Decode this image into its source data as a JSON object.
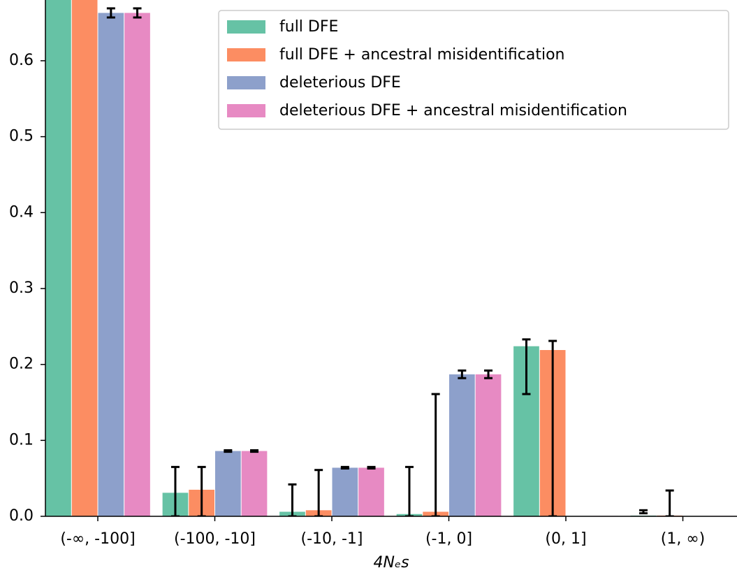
{
  "chart_data": {
    "type": "bar",
    "xlabel": "4Nₑs",
    "categories": [
      "(-∞, -100]",
      "(-100, -10]",
      "(-10, -1]",
      "(-1, 0]",
      "(0, 1]",
      "(1, ∞)"
    ],
    "series": [
      {
        "name": "full DFE",
        "color": "#66c2a5",
        "values": [
          0.7,
          0.031,
          0.006,
          0.003,
          0.224,
          0.001
        ],
        "ci_low": [
          null,
          0,
          0,
          0,
          0.161,
          0.004
        ],
        "ci_high": [
          null,
          0.065,
          0.042,
          0.065,
          0.233,
          0.008
        ]
      },
      {
        "name": "full DFE + ancestral misidentification",
        "color": "#fc8d62",
        "values": [
          0.7,
          0.035,
          0.008,
          0.006,
          0.219,
          0.001
        ],
        "ci_low": [
          null,
          0,
          0,
          0,
          0,
          0
        ],
        "ci_high": [
          null,
          0.065,
          0.061,
          0.161,
          0.231,
          0.034
        ]
      },
      {
        "name": "deleterious DFE",
        "color": "#8da0cb",
        "values": [
          0.663,
          0.086,
          0.064,
          0.187,
          0.0005,
          0.0005
        ],
        "ci_low": [
          0.657,
          0.085,
          0.063,
          0.182,
          null,
          null
        ],
        "ci_high": [
          0.669,
          0.087,
          0.065,
          0.192,
          null,
          null
        ]
      },
      {
        "name": "deleterious DFE + ancestral misidentification",
        "color": "#e78ac3",
        "values": [
          0.663,
          0.086,
          0.064,
          0.187,
          0.0005,
          0.0005
        ],
        "ci_low": [
          0.657,
          0.085,
          0.063,
          0.182,
          null,
          null
        ],
        "ci_high": [
          0.669,
          0.087,
          0.065,
          0.192,
          null,
          null
        ]
      }
    ],
    "ylim": [
      0,
      0.68
    ],
    "yticks": [
      {
        "value": 0,
        "label": "0.0"
      },
      0.1,
      0.2,
      0.3,
      0.4,
      0.5,
      0.6
    ],
    "legend": "upper right"
  }
}
